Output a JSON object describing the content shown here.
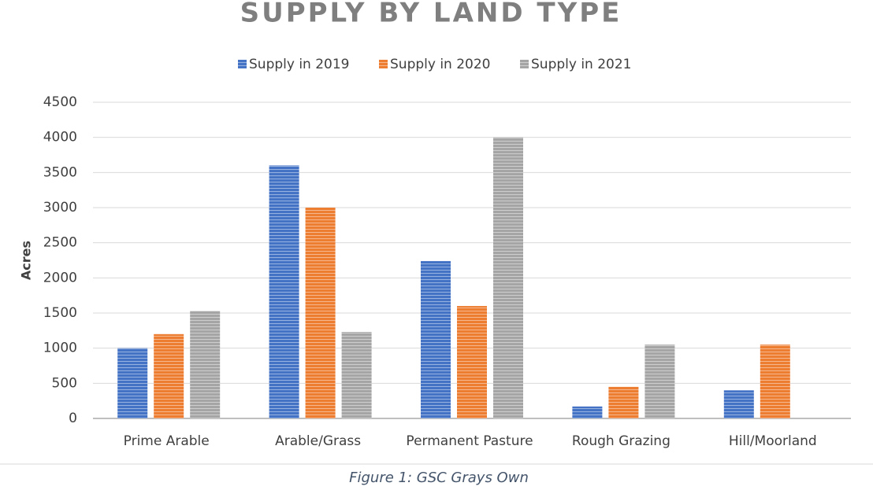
{
  "chart_data": {
    "type": "bar",
    "title": "SUPPLY BY LAND TYPE",
    "y_label": "Acres",
    "caption": "Figure 1: GSC Grays Own",
    "categories": [
      "Prime Arable",
      "Arable/Grass",
      "Permanent Pasture",
      "Rough Grazing",
      "Hill/Moorland"
    ],
    "series": [
      {
        "name": "Supply in 2019",
        "color": "#4472c4",
        "values": [
          1000,
          3600,
          2240,
          170,
          400
        ]
      },
      {
        "name": "Supply in 2020",
        "color": "#ed7d31",
        "values": [
          1200,
          3000,
          1600,
          450,
          1050
        ]
      },
      {
        "name": "Supply in 2021",
        "color": "#a5a5a5",
        "values": [
          1530,
          1230,
          4000,
          1050,
          null
        ]
      }
    ],
    "ylim": [
      0,
      4500
    ],
    "yticks": [
      0,
      500,
      1000,
      1500,
      2000,
      2500,
      3000,
      3500,
      4000,
      4500
    ],
    "grid": true,
    "legend": "top"
  }
}
